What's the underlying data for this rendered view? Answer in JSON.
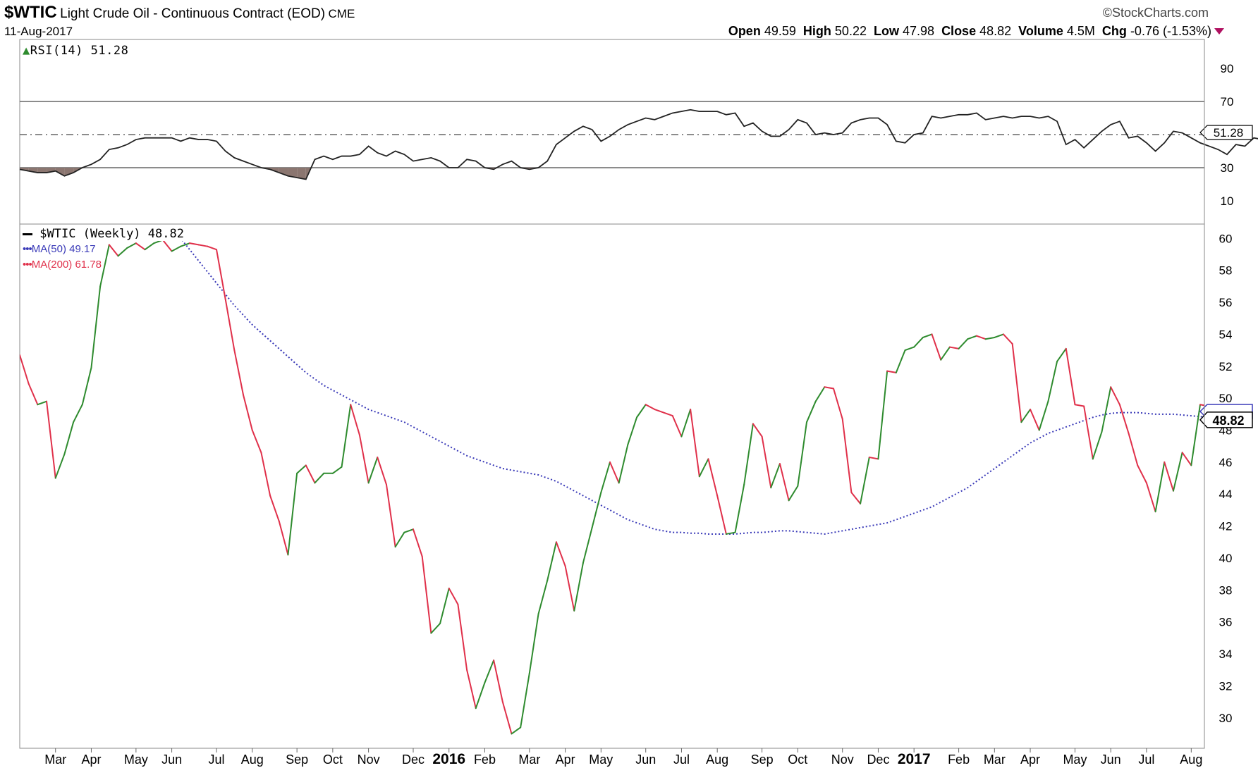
{
  "header": {
    "ticker": "$WTIC",
    "name": "Light Crude Oil - Continuous Contract (EOD)",
    "exchange": "CME",
    "date": "11-Aug-2017",
    "watermark": "©StockCharts.com",
    "open_label": "Open",
    "open": "49.59",
    "high_label": "High",
    "high": "50.22",
    "low_label": "Low",
    "low": "47.98",
    "close_label": "Close",
    "close": "48.82",
    "volume_label": "Volume",
    "volume": "4.5M",
    "chg_label": "Chg",
    "chg": "-0.76 (-1.53%)"
  },
  "legend": {
    "rsi": "RSI(14) 51.28",
    "price": "$WTIC (Weekly) 48.82",
    "ma50": "MA(50) 49.17",
    "ma200": "MA(200) 61.78"
  },
  "colors": {
    "up": "#2e8b2e",
    "down": "#e0304a",
    "ma50": "#3a3ab8",
    "ma200": "#e0304a",
    "rsi": "#222222",
    "rsi_fill": "#8b7670",
    "grid": "#666666"
  },
  "chart_data": [
    {
      "type": "line",
      "panel": "RSI",
      "ylim": [
        0,
        100
      ],
      "y_ticks": [
        90,
        70,
        30,
        10
      ],
      "reference_lines": [
        70,
        50,
        30
      ],
      "last_value_label": "51.28",
      "series": [
        {
          "name": "RSI(14)",
          "values": [
            29,
            28,
            27,
            27,
            28,
            25,
            27,
            30,
            32,
            35,
            41,
            42,
            44,
            47,
            48,
            48,
            48,
            48,
            46,
            48,
            47,
            47,
            46,
            40,
            36,
            34,
            32,
            30,
            29,
            27,
            25,
            24,
            23,
            35,
            37,
            35,
            37,
            37,
            38,
            43,
            39,
            37,
            40,
            38,
            34,
            35,
            36,
            34,
            30,
            30,
            35,
            34,
            30,
            29,
            32,
            34,
            30,
            29,
            30,
            34,
            44,
            48,
            52,
            55,
            53,
            46,
            49,
            53,
            56,
            58,
            60,
            59,
            61,
            63,
            64,
            65,
            64,
            64,
            64,
            62,
            63,
            55,
            57,
            52,
            49,
            49,
            53,
            59,
            57,
            50,
            51,
            50,
            51,
            57,
            59,
            60,
            60,
            56,
            46,
            45,
            50,
            51,
            61,
            60,
            61,
            62,
            62,
            63,
            59,
            60,
            61,
            60,
            61,
            61,
            60,
            61,
            58,
            44,
            47,
            42,
            47,
            52,
            56,
            58,
            48,
            49,
            45,
            40,
            45,
            52,
            51,
            48,
            45,
            43,
            41,
            38,
            44,
            43,
            48,
            47,
            54,
            54,
            51
          ]
        }
      ],
      "shaded_below": 30
    },
    {
      "type": "line",
      "panel": "Price",
      "title": "$WTIC Light Crude Oil - Continuous Contract (EOD)",
      "x_tick_labels": [
        "Mar",
        "Apr",
        "May",
        "Jun",
        "Jul",
        "Aug",
        "Sep",
        "Oct",
        "Nov",
        "Dec",
        "2016",
        "Feb",
        "Mar",
        "Apr",
        "May",
        "Jun",
        "Jul",
        "Aug",
        "Sep",
        "Oct",
        "Nov",
        "Dec",
        "2017",
        "Feb",
        "Mar",
        "Apr",
        "May",
        "Jun",
        "Jul",
        "Aug"
      ],
      "x_tick_weeks": [
        4,
        8,
        13,
        17,
        22,
        26,
        31,
        35,
        39,
        44,
        48,
        52,
        57,
        61,
        65,
        70,
        74,
        78,
        83,
        87,
        92,
        96,
        100,
        105,
        109,
        113,
        118,
        122,
        126,
        131
      ],
      "x_range_weeks": [
        0,
        132
      ],
      "ylim": [
        28.8,
        60.5
      ],
      "y_ticks": [
        60,
        58,
        56,
        54,
        52,
        50,
        48,
        46,
        44,
        42,
        40,
        38,
        36,
        34,
        32,
        30
      ],
      "last_value_label": "48.82",
      "series": [
        {
          "name": "$WTIC (Weekly)",
          "values": [
            52.7,
            50.9,
            49.6,
            49.8,
            45.0,
            46.5,
            48.5,
            49.6,
            51.9,
            57.0,
            59.6,
            58.9,
            59.4,
            59.7,
            59.3,
            59.7,
            59.9,
            59.2,
            59.5,
            59.7,
            59.6,
            59.5,
            59.3,
            56.2,
            53.0,
            50.2,
            48.0,
            46.6,
            43.9,
            42.3,
            40.2,
            45.3,
            45.8,
            44.7,
            45.3,
            45.3,
            45.7,
            49.6,
            47.7,
            44.7,
            46.3,
            44.6,
            40.7,
            41.6,
            41.8,
            40.1,
            35.3,
            35.9,
            38.1,
            37.1,
            33.0,
            30.6,
            32.2,
            33.6,
            31.0,
            29.0,
            29.4,
            32.8,
            36.5,
            38.6,
            41.0,
            39.5,
            36.7,
            39.7,
            41.9,
            44.1,
            46.0,
            44.7,
            47.1,
            48.8,
            49.6,
            49.3,
            49.1,
            48.9,
            47.6,
            49.3,
            45.1,
            46.2,
            43.9,
            41.5,
            41.6,
            44.6,
            48.4,
            47.6,
            44.4,
            45.9,
            43.6,
            44.5,
            48.5,
            49.8,
            50.7,
            50.6,
            48.7,
            44.1,
            43.4,
            46.3,
            46.2,
            51.7,
            51.6,
            53.0,
            53.2,
            53.8,
            54.0,
            52.4,
            53.2,
            53.1,
            53.7,
            53.9,
            53.7,
            53.8,
            54.0,
            53.4,
            48.5,
            49.3,
            48.0,
            49.8,
            52.3,
            53.1,
            49.6,
            49.5,
            46.2,
            47.9,
            50.7,
            49.6,
            47.8,
            45.8,
            44.7,
            42.9,
            46.0,
            44.2,
            46.6,
            45.8,
            49.6,
            49.5,
            48.8
          ]
        },
        {
          "name": "MA(50)",
          "style": "dotted",
          "values": [
            null,
            null,
            null,
            null,
            null,
            null,
            null,
            null,
            null,
            null,
            null,
            null,
            null,
            null,
            null,
            null,
            null,
            60.5,
            60.0,
            59.3,
            58.6,
            57.9,
            57.2,
            56.5,
            55.8,
            55.2,
            54.6,
            54.1,
            53.6,
            53.1,
            52.6,
            52.1,
            51.6,
            51.2,
            50.8,
            50.5,
            50.2,
            49.9,
            49.6,
            49.3,
            49.1,
            48.9,
            48.7,
            48.5,
            48.2,
            47.9,
            47.6,
            47.3,
            47.0,
            46.7,
            46.4,
            46.2,
            46.0,
            45.8,
            45.6,
            45.5,
            45.4,
            45.3,
            45.2,
            45.0,
            44.8,
            44.5,
            44.2,
            43.9,
            43.6,
            43.3,
            43.0,
            42.7,
            42.4,
            42.2,
            42.0,
            41.8,
            41.7,
            41.6,
            41.6,
            41.55,
            41.55,
            41.5,
            41.5,
            41.5,
            41.5,
            41.55,
            41.6,
            41.6,
            41.65,
            41.7,
            41.7,
            41.65,
            41.6,
            41.55,
            41.5,
            41.6,
            41.7,
            41.8,
            41.9,
            42.0,
            42.1,
            42.2,
            42.4,
            42.6,
            42.8,
            43.0,
            43.2,
            43.5,
            43.8,
            44.1,
            44.4,
            44.8,
            45.2,
            45.6,
            46.0,
            46.4,
            46.8,
            47.2,
            47.5,
            47.8,
            48.0,
            48.2,
            48.4,
            48.6,
            48.8,
            48.95,
            49.05,
            49.1,
            49.1,
            49.1,
            49.05,
            49.0,
            49.0,
            49.0,
            48.95,
            48.9,
            48.85,
            48.8,
            48.8,
            48.85,
            48.9,
            49.0,
            49.1,
            49.17,
            49.17
          ]
        },
        {
          "name": "MA(200)",
          "style": "dotted",
          "values": []
        }
      ]
    }
  ]
}
